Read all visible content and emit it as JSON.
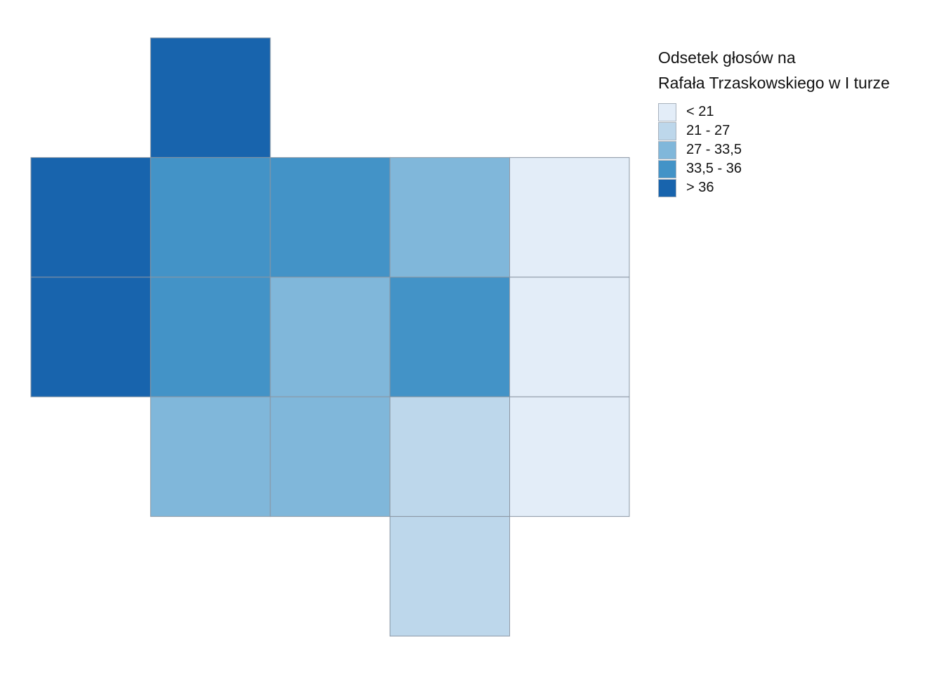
{
  "legend": {
    "title_line1": "Odsetek głosów na",
    "title_line2": "Rafała Trzaskowskiego w I turze",
    "classes": [
      {
        "label": "< 21",
        "color": "#e3edf8"
      },
      {
        "label": "21 - 27",
        "color": "#bdd7eb"
      },
      {
        "label": "27 - 33,5",
        "color": "#80b7da"
      },
      {
        "label": "33,5 - 36",
        "color": "#4393c7"
      },
      {
        "label": "> 36",
        "color": "#1864ad"
      }
    ]
  },
  "tiles": [
    {
      "col": 1,
      "row": 0,
      "class": 4
    },
    {
      "col": 0,
      "row": 1,
      "class": 4
    },
    {
      "col": 1,
      "row": 1,
      "class": 3
    },
    {
      "col": 2,
      "row": 1,
      "class": 3
    },
    {
      "col": 3,
      "row": 1,
      "class": 2
    },
    {
      "col": 4,
      "row": 1,
      "class": 0
    },
    {
      "col": 0,
      "row": 2,
      "class": 4
    },
    {
      "col": 1,
      "row": 2,
      "class": 3
    },
    {
      "col": 2,
      "row": 2,
      "class": 2
    },
    {
      "col": 3,
      "row": 2,
      "class": 3
    },
    {
      "col": 4,
      "row": 2,
      "class": 0
    },
    {
      "col": 1,
      "row": 3,
      "class": 2
    },
    {
      "col": 2,
      "row": 3,
      "class": 2
    },
    {
      "col": 3,
      "row": 3,
      "class": 1
    },
    {
      "col": 4,
      "row": 3,
      "class": 0
    },
    {
      "col": 3,
      "row": 4,
      "class": 1
    }
  ]
}
